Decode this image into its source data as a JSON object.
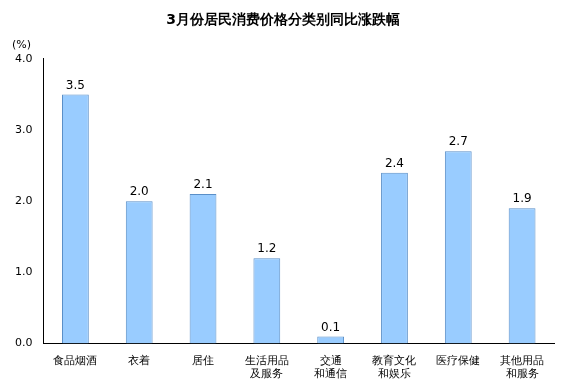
{
  "chart_data": {
    "type": "bar",
    "title": "3月份居民消费价格分类别同比涨跌幅",
    "y_label": "(%)",
    "categories": [
      "食品烟酒",
      "衣着",
      "居住",
      "生活用品\n及服务",
      "交通\n和通信",
      "教育文化\n和娱乐",
      "医疗保健",
      "其他用品\n和服务"
    ],
    "values": [
      3.5,
      2.0,
      2.1,
      1.2,
      0.1,
      2.4,
      2.7,
      1.9
    ],
    "value_labels": [
      "3.5",
      "2.0",
      "2.1",
      "1.2",
      "0.1",
      "2.4",
      "2.7",
      "1.9"
    ],
    "color": "#99ccff",
    "ylim": [
      0,
      4
    ],
    "yticks": [
      {
        "value": 0,
        "label": "0.0"
      },
      {
        "value": 1,
        "label": "1.0"
      },
      {
        "value": 2,
        "label": "2.0"
      },
      {
        "value": 3,
        "label": "3.0"
      },
      {
        "value": 4,
        "label": "4.0"
      }
    ],
    "grid": false,
    "data_labels": true
  }
}
